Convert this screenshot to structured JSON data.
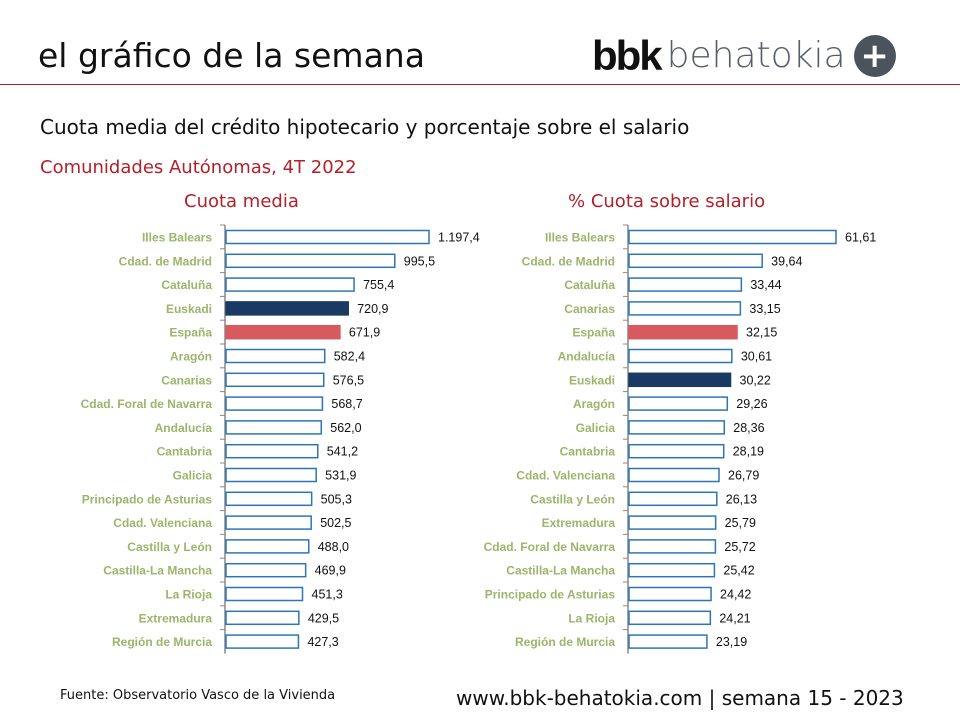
{
  "header": {
    "title": "el gráfico de la semana",
    "logo_bbk": "bbk",
    "logo_behatokia": "behatokia",
    "logo_plus": "+"
  },
  "subtitle": "Cuota media del crédito hipotecario y porcentaje sobre el salario",
  "subtitle2": "Comunidades Autónomas, 4T 2022",
  "footer": {
    "source": "Fuente: Observatorio Vasco de la Vivienda",
    "url": "www.bbk-behatokia.com | semana 15 - 2023"
  },
  "colors": {
    "label": "#9bb56a",
    "outline": "#2e75b6",
    "euskadi": "#1a3a63",
    "espana": "#d65a5f"
  },
  "chart_data": [
    {
      "type": "bar",
      "orientation": "horizontal",
      "title": "Cuota media",
      "xlim": [
        0,
        1200
      ],
      "categories": [
        "Illes Balears",
        "Cdad. de Madrid",
        "Cataluña",
        "Euskadi",
        "España",
        "Aragón",
        "Canarias",
        "Cdad. Foral de Navarra",
        "Andalucía",
        "Cantabria",
        "Galicia",
        "Principado de Asturias",
        "Cdad. Valenciana",
        "Castilla y León",
        "Castilla-La Mancha",
        "La Rioja",
        "Extremadura",
        "Región de Murcia"
      ],
      "values": [
        1197.4,
        995.5,
        755.4,
        720.9,
        671.9,
        582.4,
        576.5,
        568.7,
        562.0,
        541.2,
        531.9,
        505.3,
        502.5,
        488.0,
        469.9,
        451.3,
        429.5,
        427.3
      ],
      "labels": [
        "1.197,4",
        "995,5",
        "755,4",
        "720,9",
        "671,9",
        "582,4",
        "576,5",
        "568,7",
        "562,0",
        "541,2",
        "531,9",
        "505,3",
        "502,5",
        "488,0",
        "469,9",
        "451,3",
        "429,5",
        "427,3"
      ]
    },
    {
      "type": "bar",
      "orientation": "horizontal",
      "title": "% Cuota sobre salario",
      "xlim": [
        0,
        62
      ],
      "categories": [
        "Illes Balears",
        "Cdad. de Madrid",
        "Cataluña",
        "Canarias",
        "España",
        "Andalucía",
        "Euskadi",
        "Aragón",
        "Galicia",
        "Cantabria",
        "Cdad. Valenciana",
        "Castilla y León",
        "Extremadura",
        "Cdad. Foral de Navarra",
        "Castilla-La Mancha",
        "Principado de Asturias",
        "La Rioja",
        "Región de Murcia"
      ],
      "values": [
        61.61,
        39.64,
        33.44,
        33.15,
        32.15,
        30.61,
        30.22,
        29.26,
        28.36,
        28.19,
        26.79,
        26.13,
        25.79,
        25.72,
        25.42,
        24.42,
        24.21,
        23.19
      ],
      "labels": [
        "61,61",
        "39,64",
        "33,44",
        "33,15",
        "32,15",
        "30,61",
        "30,22",
        "29,26",
        "28,36",
        "28,19",
        "26,79",
        "26,13",
        "25,79",
        "25,72",
        "25,42",
        "24,42",
        "24,21",
        "23,19"
      ]
    }
  ]
}
